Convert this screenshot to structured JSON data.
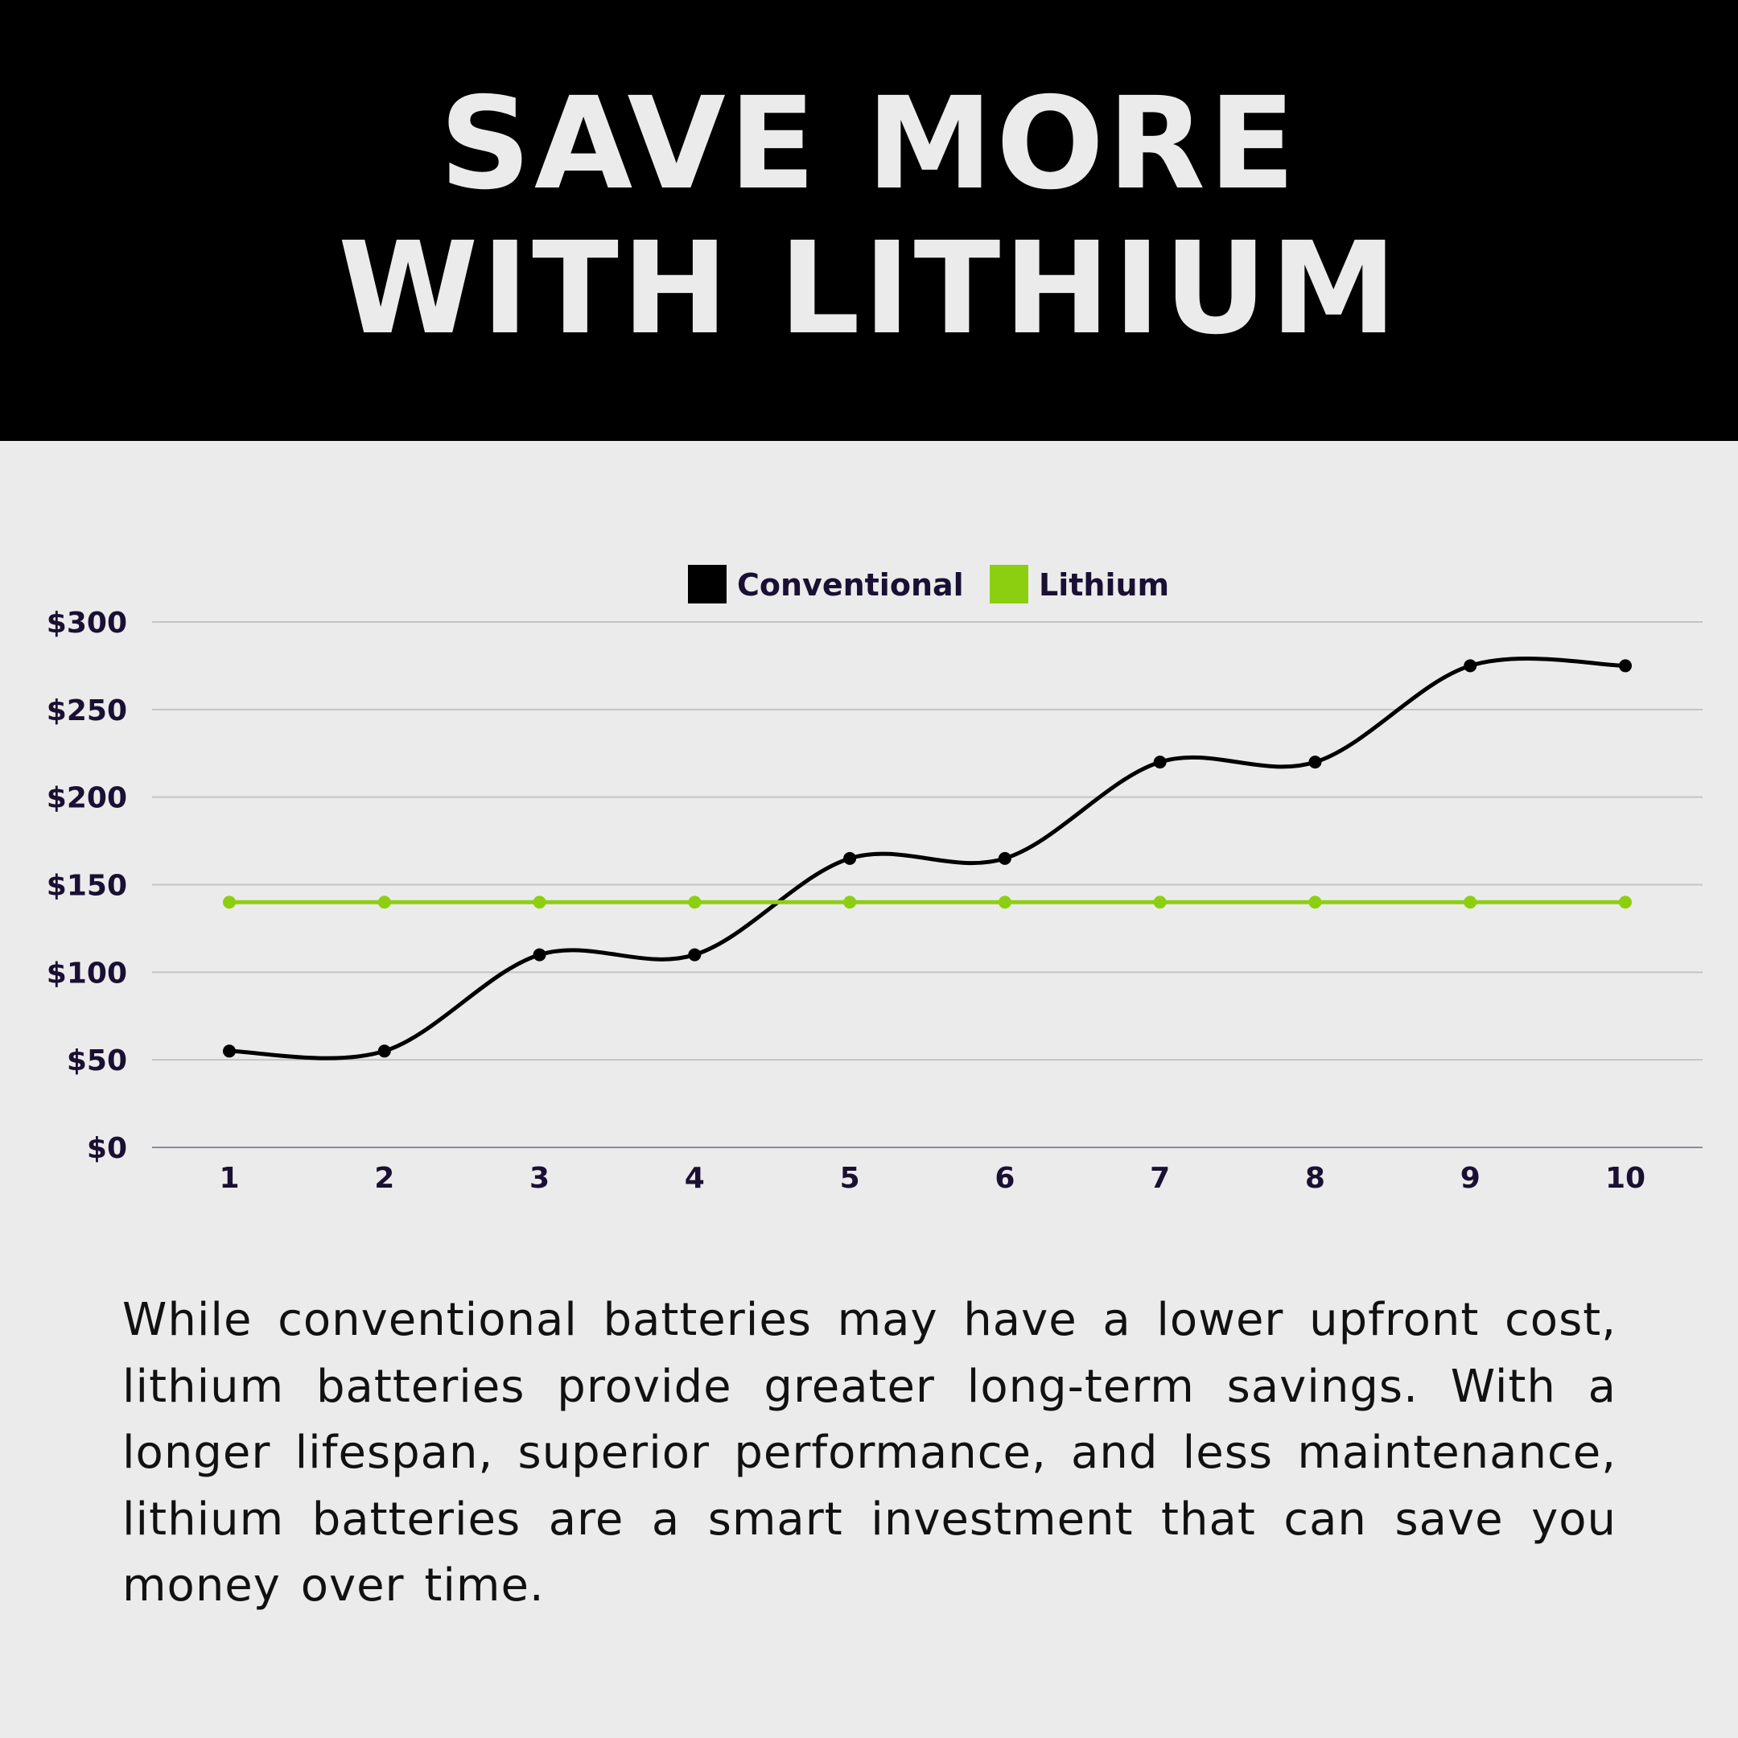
{
  "header": {
    "title_line1": "SAVE MORE",
    "title_line2": "WITH LITHIUM"
  },
  "chart_data": {
    "type": "line",
    "categories": [
      "1",
      "2",
      "3",
      "4",
      "5",
      "6",
      "7",
      "8",
      "9",
      "10"
    ],
    "series": [
      {
        "name": "Conventional",
        "color": "#000000",
        "values": [
          55,
          55,
          110,
          110,
          165,
          165,
          220,
          220,
          275,
          275
        ]
      },
      {
        "name": "Lithium",
        "color": "#8ccf10",
        "values": [
          140,
          140,
          140,
          140,
          140,
          140,
          140,
          140,
          140,
          140
        ]
      }
    ],
    "yticks": [
      "$0",
      "$50",
      "$100",
      "$150",
      "$200",
      "$250",
      "$300"
    ],
    "ylim": [
      0,
      300
    ],
    "grid": true,
    "legend": "top-center",
    "smooth": true
  },
  "paragraph": "While conventional batteries may have a lower upfront cost, lithium batteries provide greater long-term savings. With a longer lifespan, superior performance, and less maintenance, lithium batteries are a smart investment that can save you money over time."
}
